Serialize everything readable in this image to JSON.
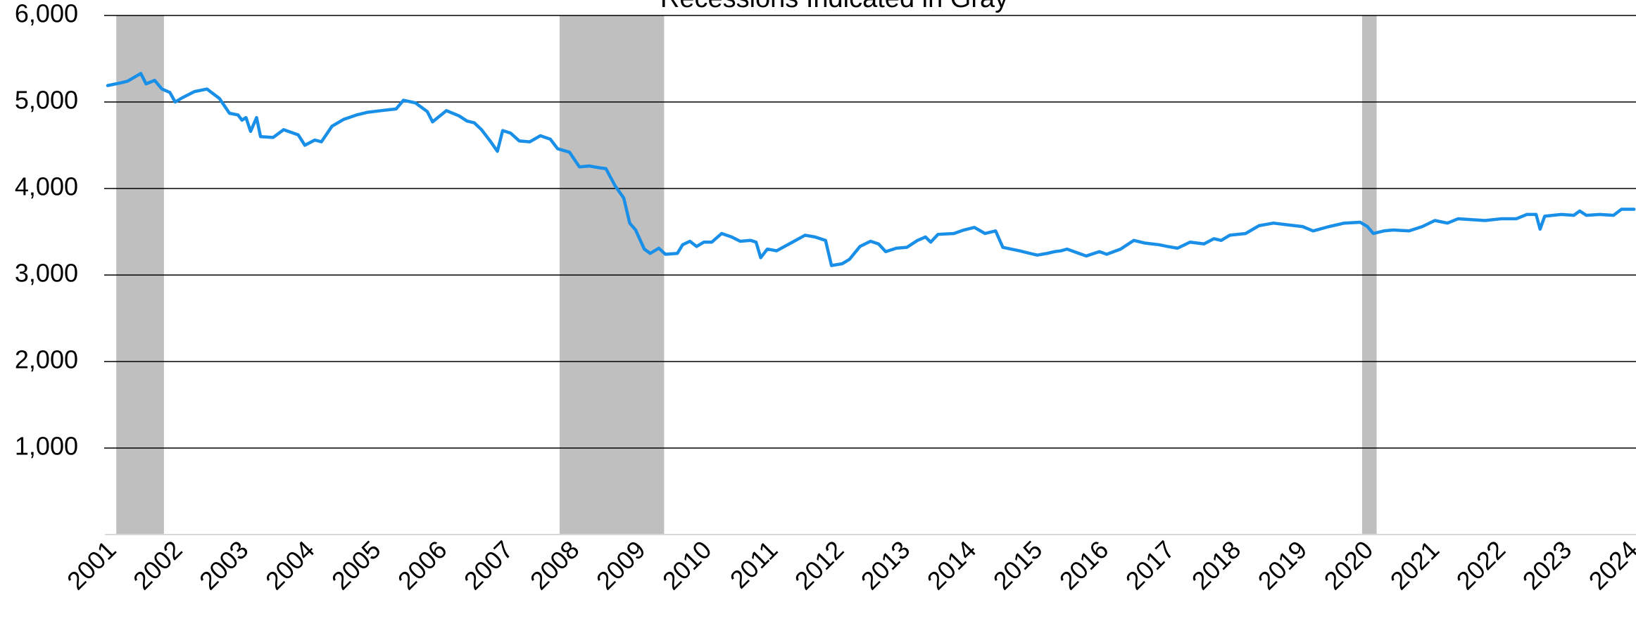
{
  "chart_data": {
    "type": "line",
    "title": "Recessions Indicated in Gray",
    "color": "#1a8fe8",
    "recession_color": "#bfbfbf",
    "recessions": [
      {
        "start": 2001.13,
        "end": 2001.85
      },
      {
        "start": 2007.83,
        "end": 2009.41
      },
      {
        "start": 2019.96,
        "end": 2020.18
      }
    ],
    "xlim": [
      2001,
      2024.1
    ],
    "xticks": [
      2001,
      2002,
      2003,
      2004,
      2005,
      2006,
      2007,
      2008,
      2009,
      2010,
      2011,
      2012,
      2013,
      2014,
      2015,
      2016,
      2017,
      2018,
      2019,
      2020,
      2021,
      2022,
      2023,
      2024
    ],
    "ylim": [
      0,
      6000
    ],
    "yticks": [
      {
        "value": 1000,
        "label": "1,000"
      },
      {
        "value": 2000,
        "label": "2,000"
      },
      {
        "value": 3000,
        "label": "3,000"
      },
      {
        "value": 4000,
        "label": "4,000"
      },
      {
        "value": 5000,
        "label": "5,000"
      },
      {
        "value": 6000,
        "label": "6,000"
      }
    ],
    "grid": true,
    "x": [
      2001.0,
      2001.19,
      2001.3,
      2001.5,
      2001.58,
      2001.71,
      2001.82,
      2001.94,
      2002.02,
      2002.13,
      2002.31,
      2002.5,
      2002.69,
      2002.84,
      2002.97,
      2003.03,
      2003.09,
      2003.16,
      2003.25,
      2003.31,
      2003.5,
      2003.66,
      2003.88,
      2003.98,
      2004.13,
      2004.23,
      2004.39,
      2004.57,
      2004.76,
      2004.92,
      2005.13,
      2005.36,
      2005.47,
      2005.65,
      2005.83,
      2005.91,
      2006.12,
      2006.31,
      2006.43,
      2006.54,
      2006.65,
      2006.78,
      2006.89,
      2006.97,
      2007.09,
      2007.22,
      2007.38,
      2007.54,
      2007.69,
      2007.8,
      2007.98,
      2008.13,
      2008.28,
      2008.43,
      2008.53,
      2008.67,
      2008.8,
      2008.89,
      2008.98,
      2009.11,
      2009.2,
      2009.33,
      2009.43,
      2009.61,
      2009.69,
      2009.8,
      2009.9,
      2010.01,
      2010.13,
      2010.28,
      2010.43,
      2010.56,
      2010.72,
      2010.8,
      2010.87,
      2010.97,
      2011.11,
      2011.35,
      2011.54,
      2011.69,
      2011.85,
      2011.94,
      2012.1,
      2012.21,
      2012.37,
      2012.53,
      2012.65,
      2012.76,
      2012.92,
      2013.08,
      2013.24,
      2013.36,
      2013.44,
      2013.55,
      2013.79,
      2013.94,
      2014.1,
      2014.26,
      2014.42,
      2014.53,
      2014.78,
      2014.94,
      2015.05,
      2015.2,
      2015.31,
      2015.41,
      2015.5,
      2015.68,
      2015.79,
      2015.99,
      2016.1,
      2016.31,
      2016.51,
      2016.67,
      2016.89,
      2017.02,
      2017.17,
      2017.36,
      2017.57,
      2017.72,
      2017.83,
      2017.96,
      2018.2,
      2018.4,
      2018.62,
      2018.83,
      2019.06,
      2019.22,
      2019.46,
      2019.69,
      2019.93,
      2020.04,
      2020.13,
      2020.29,
      2020.43,
      2020.67,
      2020.87,
      2021.06,
      2021.25,
      2021.41,
      2021.61,
      2021.82,
      2022.06,
      2022.29,
      2022.45,
      2022.59,
      2022.65,
      2022.72,
      2022.97,
      2023.16,
      2023.25,
      2023.35,
      2023.55,
      2023.76,
      2023.88,
      2024.07
    ],
    "values": [
      5190,
      5220,
      5240,
      5330,
      5210,
      5250,
      5150,
      5110,
      5000,
      5050,
      5120,
      5150,
      5040,
      4870,
      4850,
      4790,
      4820,
      4660,
      4820,
      4600,
      4590,
      4680,
      4620,
      4500,
      4560,
      4540,
      4720,
      4800,
      4850,
      4880,
      4900,
      4920,
      5020,
      4990,
      4890,
      4770,
      4900,
      4840,
      4780,
      4760,
      4680,
      4550,
      4430,
      4670,
      4640,
      4550,
      4540,
      4610,
      4570,
      4460,
      4420,
      4250,
      4260,
      4240,
      4230,
      4030,
      3890,
      3600,
      3520,
      3300,
      3250,
      3310,
      3240,
      3250,
      3350,
      3390,
      3330,
      3380,
      3380,
      3480,
      3440,
      3390,
      3400,
      3380,
      3200,
      3300,
      3280,
      3380,
      3460,
      3440,
      3400,
      3110,
      3130,
      3180,
      3330,
      3390,
      3360,
      3270,
      3310,
      3320,
      3400,
      3440,
      3380,
      3470,
      3480,
      3520,
      3550,
      3480,
      3510,
      3320,
      3280,
      3250,
      3230,
      3250,
      3270,
      3280,
      3300,
      3250,
      3220,
      3270,
      3240,
      3300,
      3400,
      3370,
      3350,
      3330,
      3310,
      3380,
      3360,
      3420,
      3400,
      3460,
      3480,
      3570,
      3600,
      3580,
      3560,
      3510,
      3560,
      3600,
      3610,
      3560,
      3480,
      3510,
      3520,
      3510,
      3560,
      3630,
      3600,
      3650,
      3640,
      3630,
      3650,
      3650,
      3700,
      3700,
      3530,
      3680,
      3700,
      3690,
      3740,
      3690,
      3700,
      3690,
      3760,
      3760
    ]
  }
}
